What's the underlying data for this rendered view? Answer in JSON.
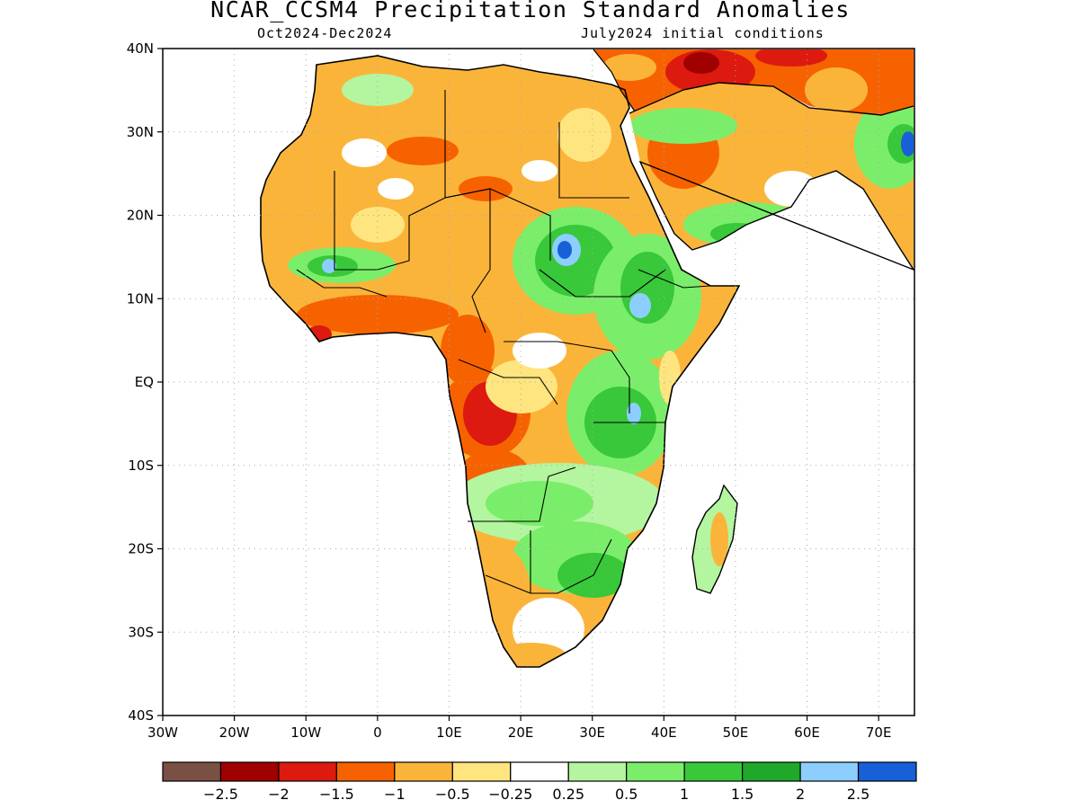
{
  "header": {
    "title": "NCAR_CCSM4 Precipitation Standard Anomalies",
    "period": "Oct2024-Dec2024",
    "init": "July2024 initial conditions"
  },
  "map": {
    "lon_range": [
      -30,
      75
    ],
    "lat_range": [
      -40,
      40
    ],
    "lat_ticks": [
      {
        "value": 40,
        "label": "40N"
      },
      {
        "value": 30,
        "label": "30N"
      },
      {
        "value": 20,
        "label": "20N"
      },
      {
        "value": 10,
        "label": "10N"
      },
      {
        "value": 0,
        "label": "EQ"
      },
      {
        "value": -10,
        "label": "10S"
      },
      {
        "value": -20,
        "label": "20S"
      },
      {
        "value": -30,
        "label": "30S"
      },
      {
        "value": -40,
        "label": "40S"
      }
    ],
    "lon_ticks": [
      {
        "value": -30,
        "label": "30W"
      },
      {
        "value": -20,
        "label": "20W"
      },
      {
        "value": -10,
        "label": "10W"
      },
      {
        "value": 0,
        "label": "0"
      },
      {
        "value": 10,
        "label": "10E"
      },
      {
        "value": 20,
        "label": "20E"
      },
      {
        "value": 30,
        "label": "30E"
      },
      {
        "value": 40,
        "label": "40E"
      },
      {
        "value": 50,
        "label": "50E"
      },
      {
        "value": 60,
        "label": "60E"
      },
      {
        "value": 70,
        "label": "70E"
      }
    ],
    "grid": true
  },
  "colorbar": {
    "colors": [
      "#7a4f44",
      "#a00000",
      "#dc1a0f",
      "#f76200",
      "#fbb43a",
      "#ffe57f",
      "#ffffff",
      "#b4f5a0",
      "#7aee6a",
      "#38c83a",
      "#20a82a",
      "#8ccfff",
      "#1860d8"
    ],
    "labels": [
      "-2.5",
      "-2",
      "-1.5",
      "-1",
      "-0.5",
      "-0.25",
      "0.25",
      "0.5",
      "1",
      "1.5",
      "2",
      "2.5"
    ]
  }
}
